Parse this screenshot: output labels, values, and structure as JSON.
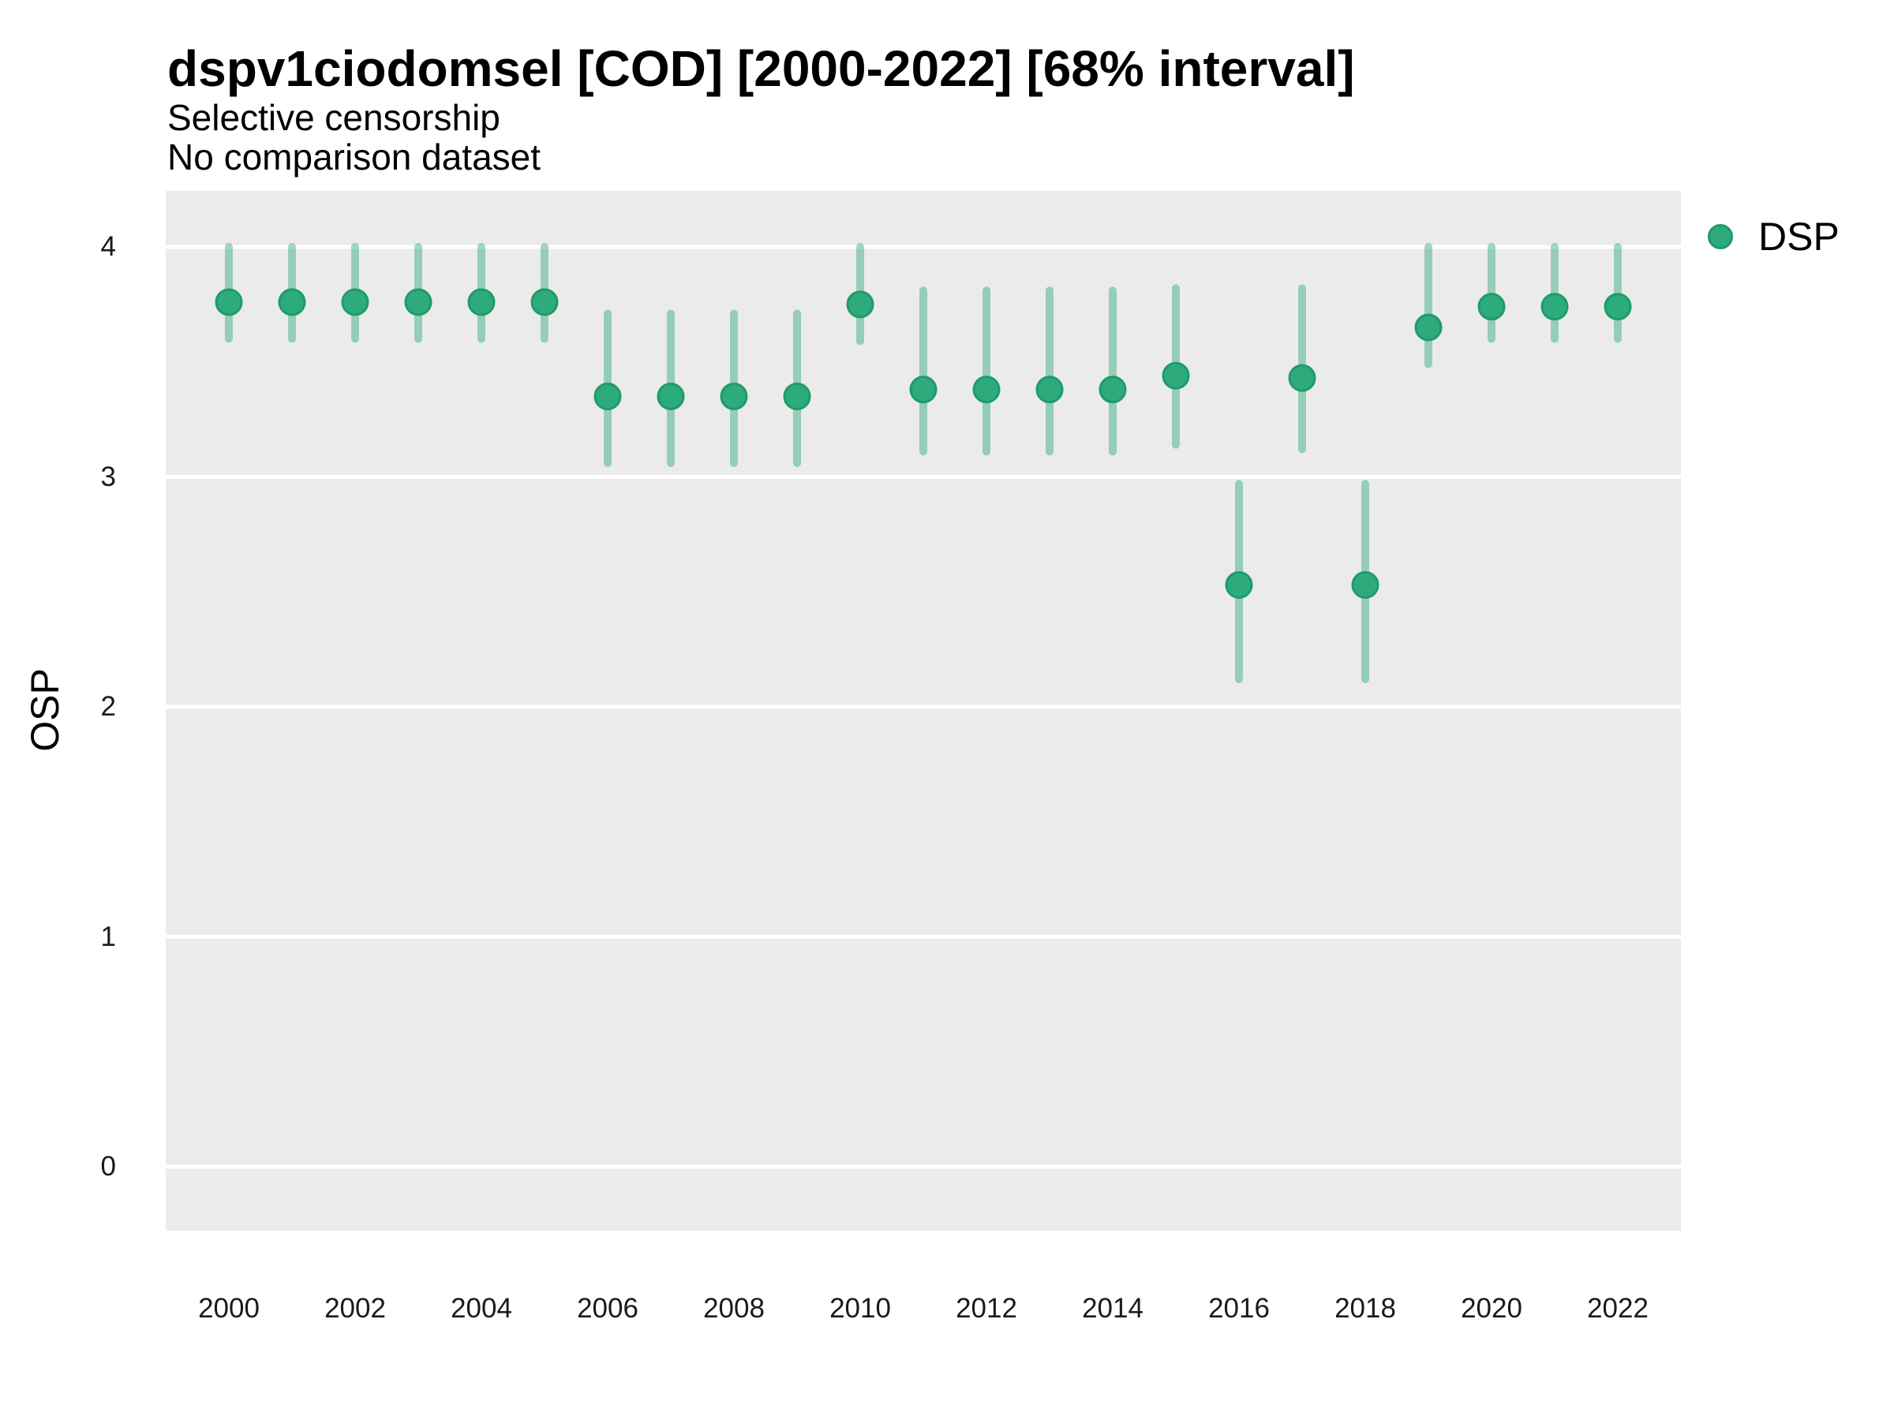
{
  "header": {
    "title": "dspv1ciodomsel [COD] [2000-2022] [68% interval]",
    "subtitle_line1": "Selective censorship",
    "subtitle_line2": "No comparison dataset"
  },
  "y_axis": {
    "label": "OSP"
  },
  "legend": {
    "label": "DSP"
  },
  "colors": {
    "point_fill": "#2EAB7C",
    "point_stroke": "#1E9B6B",
    "interval_stroke": "#2FA97B",
    "panel_background": "#EBEBEB",
    "gridline": "#FFFFFF"
  },
  "chart_data": {
    "type": "pointrange",
    "title": "dspv1ciodomsel [COD] [2000-2022] [68% interval]",
    "subtitle": [
      "Selective censorship",
      "No comparison dataset"
    ],
    "interval_level": "68%",
    "ylabel": "OSP",
    "xlabel": "",
    "legend_position": "right",
    "grid": "major-horizontal-only",
    "ylim": [
      -0.28,
      4.24
    ],
    "yticks": [
      0,
      1,
      2,
      3,
      4
    ],
    "xticks": [
      2000,
      2002,
      2004,
      2006,
      2008,
      2010,
      2012,
      2014,
      2016,
      2018,
      2020,
      2022
    ],
    "x": [
      2000,
      2001,
      2002,
      2003,
      2004,
      2005,
      2006,
      2007,
      2008,
      2009,
      2010,
      2011,
      2012,
      2013,
      2014,
      2015,
      2016,
      2017,
      2018,
      2019,
      2020,
      2021,
      2022
    ],
    "series": [
      {
        "name": "DSP",
        "points": [
          3.76,
          3.76,
          3.76,
          3.76,
          3.76,
          3.76,
          3.35,
          3.35,
          3.35,
          3.35,
          3.75,
          3.38,
          3.38,
          3.38,
          3.38,
          3.44,
          2.53,
          3.43,
          2.53,
          3.65,
          3.74,
          3.74,
          3.74
        ],
        "lower": [
          3.6,
          3.6,
          3.6,
          3.6,
          3.6,
          3.6,
          3.06,
          3.06,
          3.06,
          3.06,
          3.59,
          3.11,
          3.11,
          3.11,
          3.11,
          3.14,
          2.12,
          3.12,
          2.12,
          3.49,
          3.6,
          3.6,
          3.6
        ],
        "upper": [
          4.0,
          4.0,
          4.0,
          4.0,
          4.0,
          4.0,
          3.71,
          3.71,
          3.71,
          3.71,
          4.0,
          3.81,
          3.81,
          3.81,
          3.81,
          3.82,
          2.97,
          3.82,
          2.97,
          4.0,
          4.0,
          4.0,
          4.0
        ]
      }
    ]
  }
}
